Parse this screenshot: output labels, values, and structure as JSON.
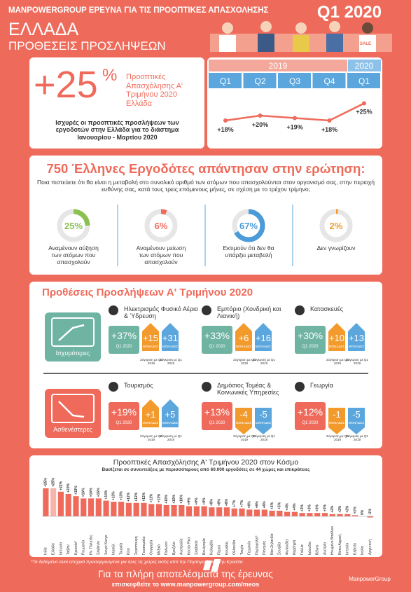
{
  "header": {
    "survey": "MANPOWERGROUP ΕΡΕΥΝΑ ΓΙΑ ΤΙΣ ΠΡΟΟΠΤΙΚΕΣ ΑΠΑΣΧΟΛΗΣΗΣ",
    "quarter": "Q1 2020",
    "country": "ΕΛΛΑΔΑ",
    "subtitle": "ΠΡΟΘΕΣΕΙΣ ΠΡΟΣΛΗΨΕΩΝ",
    "sale_tag": "SALE"
  },
  "outlook": {
    "value": "+25",
    "unit": "%",
    "label": "Προοπτικές Απασχόλησης Α' Τριμήνου 2020 Ελλάδα",
    "description": "Ισχυρές οι προοπτικές προσλήψεων των εργοδοτών στην Ελλάδα για το διάστημα Ιανουαρίου - Μαρτίου 2020"
  },
  "chart_data": [
    {
      "type": "line",
      "years": [
        "2019",
        "2020"
      ],
      "categories": [
        "Q1",
        "Q2",
        "Q3",
        "Q4",
        "Q1"
      ],
      "values": [
        18,
        20,
        19,
        18,
        25
      ],
      "value_labels": [
        "+18%",
        "+20%",
        "+19%",
        "+18%",
        "+25%"
      ],
      "color": "#ef6b5b",
      "ylim": [
        10,
        30
      ]
    },
    {
      "type": "donut",
      "title": "750 Έλληνες Εργοδότες απάντησαν στην ερώτηση:",
      "subtitle": "Ποια πιστεύετε ότι θα είναι η μεταβολή στο συνολικό αριθμό των ατόμων που απασχολούνται στον οργανισμό σας, στην περιοχή ευθύνης σας, κατά τους τρεις επόμενους μήνες, σε σχέση με το τρέχον τρίμηνο;",
      "categories": [
        "Αναμένουν αύξηση των ατόμων που απασχολούν",
        "Αναμένουν μείωση των ατόμων που απασχολούν",
        "Εκτιμούν ότι δεν θα υπάρξει μεταβολή",
        "Δεν γνωρίζουν"
      ],
      "values": [
        25,
        6,
        67,
        2
      ],
      "value_labels": [
        "25%",
        "6%",
        "67%",
        "2%"
      ],
      "colors": [
        "#8cc152",
        "#ef6b5b",
        "#4a9bd8",
        "#f39a2c"
      ],
      "ylim": [
        0,
        100
      ]
    },
    {
      "type": "bar",
      "title": "Προοπτικές Απασχόλησης Α' Τριμήνου 2020 στον Κόσμο",
      "subtitle": "Βασίζεται σε συνεντεύξεις με περισσότερους από 60.000 εργοδότες σε 44 χώρες και επικράτειες",
      "categories": [
        "Ινδία",
        "Ελλάδα",
        "Ιαπωνία",
        "Ταϊβάν",
        "Κροατία*",
        "Ρουμανία",
        "Ην. Πολιτείες",
        "Σλοβενία",
        "Χονγκ Κονγκ",
        "Ισραήλ",
        "Τουρκία",
        "Κίνα",
        "Σιγκαπούρη",
        "Γουατεμάλα",
        "Ουγγαρία",
        "Μεξικό",
        "Πολωνία",
        "Βραζιλία",
        "Αυστραλία",
        "Κόστα Ρίκα",
        "Σλοβακία",
        "Βουλγαρία",
        "Κολομβία",
        "Περού",
        "Καναδάς",
        "Ολλανδία",
        "Τσεχία",
        "Γερμανία",
        "Πορτογαλία*",
        "Παναμάς",
        "Νέα Ζηλανδία",
        "Σουηδία",
        "Φινλανδία",
        "Νορβηγία",
        "Γαλλία",
        "Ιρλανδία",
        "Βέλγιο",
        "Αυστρία",
        "Ηνωμένο Βασίλειο",
        "Νότια Αφρική",
        "Ισπανία",
        "Ελβετία",
        "Ιταλία",
        "Αργεντινή"
      ],
      "values": [
        25,
        25,
        22,
        20,
        18,
        16,
        16,
        16,
        14,
        13,
        13,
        12,
        12,
        12,
        11,
        11,
        10,
        10,
        10,
        9,
        9,
        9,
        8,
        8,
        8,
        7,
        7,
        6,
        6,
        6,
        5,
        5,
        4,
        4,
        3,
        3,
        3,
        3,
        2,
        2,
        2,
        1,
        0,
        -1
      ],
      "value_labels": [
        "+25%",
        "+25%",
        "+22%",
        "+20%",
        "+18%",
        "+16%",
        "+16%",
        "+16%",
        "+14%",
        "+13%",
        "+13%",
        "+12%",
        "+12%",
        "+12%",
        "+11%",
        "+11%",
        "+10%",
        "+10%",
        "+10%",
        "+9%",
        "+9%",
        "+9%",
        "+8%",
        "+8%",
        "+8%",
        "+7%",
        "+7%",
        "+6%",
        "+6%",
        "+6%",
        "+5%",
        "+5%",
        "+4%",
        "+4%",
        "+3%",
        "+3%",
        "+3%",
        "+3%",
        "+2%",
        "+2%",
        "+2%",
        "+1%",
        "0%",
        "-1%"
      ],
      "colors": [
        "#ef6a5a",
        "#f6b4aa",
        "#ef6a5a",
        "#ef6a5a",
        "#ef6a5a",
        "#ef6a5a",
        "#ef6a5a",
        "#ef6a5a",
        "#ef6a5a",
        "#ef6a5a",
        "#ef6a5a",
        "#ef6a5a",
        "#ef6a5a",
        "#ef6a5a",
        "#ef6a5a",
        "#ef6a5a",
        "#ef6a5a",
        "#ef6a5a",
        "#ef6a5a",
        "#ef6a5a",
        "#ef6a5a",
        "#ef6a5a",
        "#ef6a5a",
        "#ef6a5a",
        "#ef6a5a",
        "#ef6a5a",
        "#ef6a5a",
        "#ef6a5a",
        "#ef6a5a",
        "#ef6a5a",
        "#ef6a5a",
        "#ef6a5a",
        "#ef6a5a",
        "#ef6a5a",
        "#ef6a5a",
        "#ef6a5a",
        "#ef6a5a",
        "#ef6a5a",
        "#ef6a5a",
        "#ef6a5a",
        "#ef6a5a",
        "#ef6a5a",
        "#ef6a5a",
        "#ef6a5a"
      ],
      "ylim": [
        -5,
        30
      ]
    }
  ],
  "sectors": {
    "title": "Προθέσεις Προσλήψεων Α' Τριμήνου 2020",
    "period": "Q1 2020",
    "units": "ΜΟΝΑΔΕΣ",
    "q4_note": "Σύγκριση με Q4 2019",
    "q1_note": "Σύγκριση με Q1 2019",
    "groups": [
      {
        "label": "Ισχυρότερες",
        "color": "#6fb3a2",
        "items": [
          {
            "name": "Ηλεκτρισμός Φυσικό Αέριο & Ύδρευση",
            "value": "+37%",
            "vs_q4": "+15",
            "vs_q1": "+31"
          },
          {
            "name": "Εμπόριο (Χονδρική και Λιανική)",
            "value": "+33%",
            "vs_q4": "+6",
            "vs_q1": "+16"
          },
          {
            "name": "Κατασκευές",
            "value": "+30%",
            "vs_q4": "+10",
            "vs_q1": "+13"
          }
        ]
      },
      {
        "label": "Ασθενέστερες",
        "color": "#ef6a5a",
        "items": [
          {
            "name": "Τουρισμός",
            "value": "+19%",
            "vs_q4": "+1",
            "vs_q1": "+5"
          },
          {
            "name": "Δημόσιος Τομέας & Κοινωνικές Υπηρεσίες",
            "value": "+13%",
            "vs_q4": "-4",
            "vs_q1": "-5"
          },
          {
            "name": "Γεωργία",
            "value": "+12%",
            "vs_q4": "-1",
            "vs_q1": "-5"
          }
        ]
      }
    ]
  },
  "footer": {
    "footnote": "*Τα δεδομένα είναι εποχικά προσαρμοσμένα για όλες τις χώρες εκτός από την Πορτογαλία και την Κροατία.",
    "cta": "Για τα πλήρη αποτελέσματα της έρευνας",
    "url": "επισκεφθείτε το www.manpowergroup.com/meos",
    "brand": "ManpowerGroup"
  }
}
